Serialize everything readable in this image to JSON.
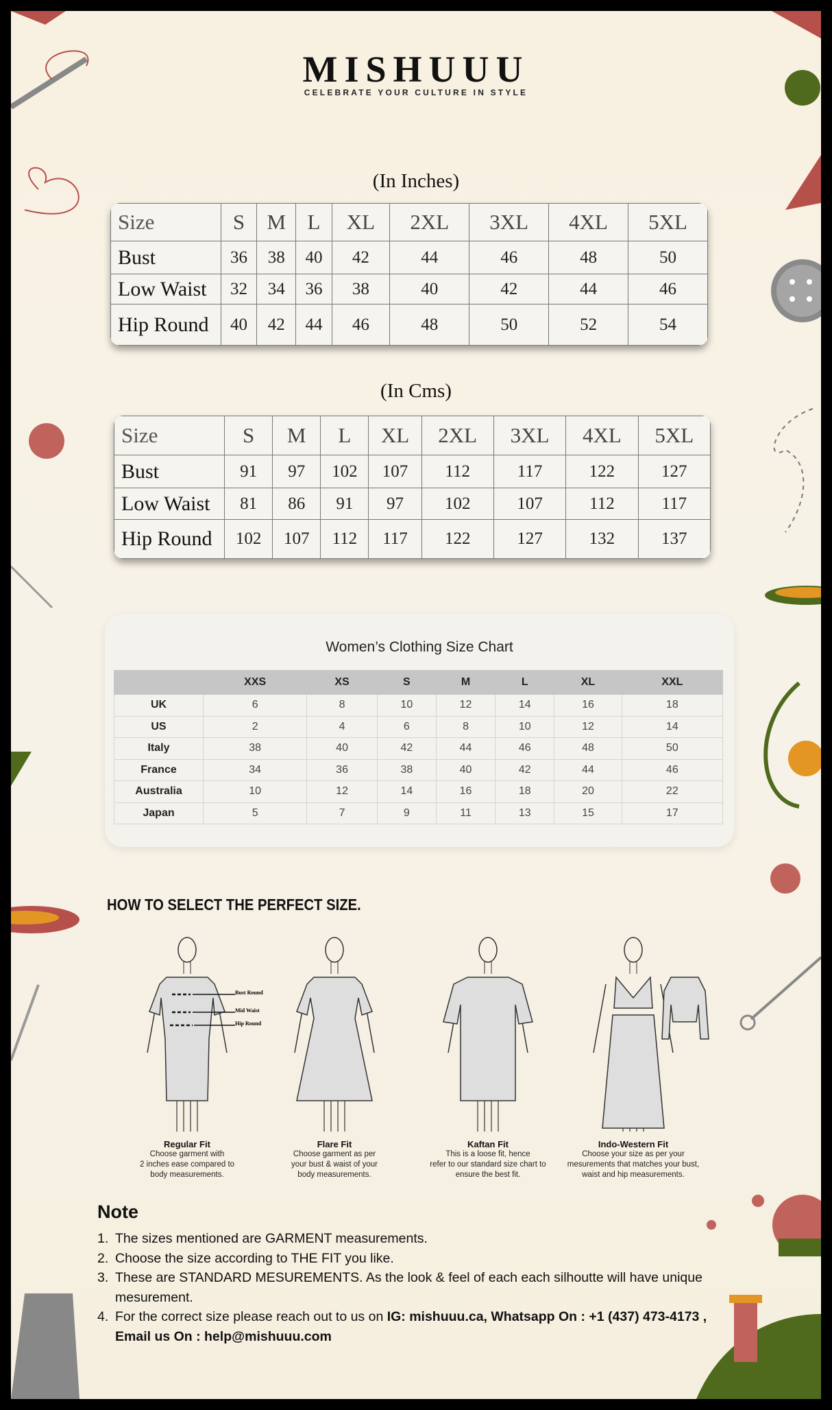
{
  "brand": {
    "name": "MISHUUU",
    "tagline": "CELEBRATE YOUR CULTURE IN STYLE"
  },
  "inches": {
    "caption": "(In Inches)",
    "header": [
      "Size",
      "S",
      "M",
      "L",
      "XL",
      "2XL",
      "3XL",
      "4XL",
      "5XL"
    ],
    "rows": [
      [
        "Bust",
        "36",
        "38",
        "40",
        "42",
        "44",
        "46",
        "48",
        "50"
      ],
      [
        "Low Waist",
        "32",
        "34",
        "36",
        "38",
        "40",
        "42",
        "44",
        "46"
      ],
      [
        "Hip Round",
        "40",
        "42",
        "44",
        "46",
        "48",
        "50",
        "52",
        "54"
      ]
    ]
  },
  "cms": {
    "caption": "(In Cms)",
    "header": [
      "Size",
      "S",
      "M",
      "L",
      "XL",
      "2XL",
      "3XL",
      "4XL",
      "5XL"
    ],
    "rows": [
      [
        "Bust",
        "91",
        "97",
        "102",
        "107",
        "112",
        "117",
        "122",
        "127"
      ],
      [
        "Low Waist",
        "81",
        "86",
        "91",
        "97",
        "102",
        "107",
        "112",
        "117"
      ],
      [
        "Hip Round",
        "102",
        "107",
        "112",
        "117",
        "122",
        "127",
        "132",
        "137"
      ]
    ]
  },
  "womens": {
    "title": "Women’s Clothing Size Chart",
    "header": [
      "",
      "XXS",
      "XS",
      "S",
      "M",
      "L",
      "XL",
      "XXL"
    ],
    "rows": [
      [
        "UK",
        "6",
        "8",
        "10",
        "12",
        "14",
        "16",
        "18"
      ],
      [
        "US",
        "2",
        "4",
        "6",
        "8",
        "10",
        "12",
        "14"
      ],
      [
        "Italy",
        "38",
        "40",
        "42",
        "44",
        "46",
        "48",
        "50"
      ],
      [
        "France",
        "34",
        "36",
        "38",
        "40",
        "42",
        "44",
        "46"
      ],
      [
        "Australia",
        "10",
        "12",
        "14",
        "16",
        "18",
        "20",
        "22"
      ],
      [
        "Japan",
        "5",
        "7",
        "9",
        "11",
        "13",
        "15",
        "17"
      ]
    ]
  },
  "howto": {
    "title": "HOW TO SELECT THE PERFECT SIZE.",
    "labels": {
      "bust": "Bust Round",
      "waist": "Mid Waist",
      "hip": "Hip Round"
    },
    "fits": [
      {
        "title": "Regular Fit",
        "lines": [
          "Choose garment with",
          "2 inches ease compared to",
          "body measurements."
        ]
      },
      {
        "title": "Flare Fit",
        "lines": [
          "Choose garment as per",
          "your bust & waist of your",
          "body measurements."
        ]
      },
      {
        "title": "Kaftan Fit",
        "lines": [
          "This is a loose fit, hence",
          "refer to our standard size chart to",
          "ensure the best fit."
        ]
      },
      {
        "title": "Indo-Western Fit",
        "lines": [
          "Choose your size as per your",
          "mesurements that matches your bust,",
          "waist and hip measurements."
        ]
      }
    ]
  },
  "note": {
    "title": "Note",
    "items": [
      {
        "num": "1.",
        "text": "The sizes mentioned are GARMENT measurements."
      },
      {
        "num": "2.",
        "text": "Choose the size according to THE FIT you like."
      },
      {
        "num": "3.",
        "text": "These are STANDARD MESUREMENTS. As the look & feel of each each silhoutte will have unique mesurement."
      },
      {
        "num": "4.",
        "text": "For the correct size please reach out to us on ",
        "bold": "IG: mishuuu.ca, Whatsapp On : +1 (437) 473-4173 , Email us On : help@mishuuu.com"
      }
    ]
  },
  "colors": {
    "accent_red": "#b5504a",
    "accent_green": "#4f6a1c",
    "accent_orange": "#e39624",
    "background": "#f8f1e1"
  }
}
